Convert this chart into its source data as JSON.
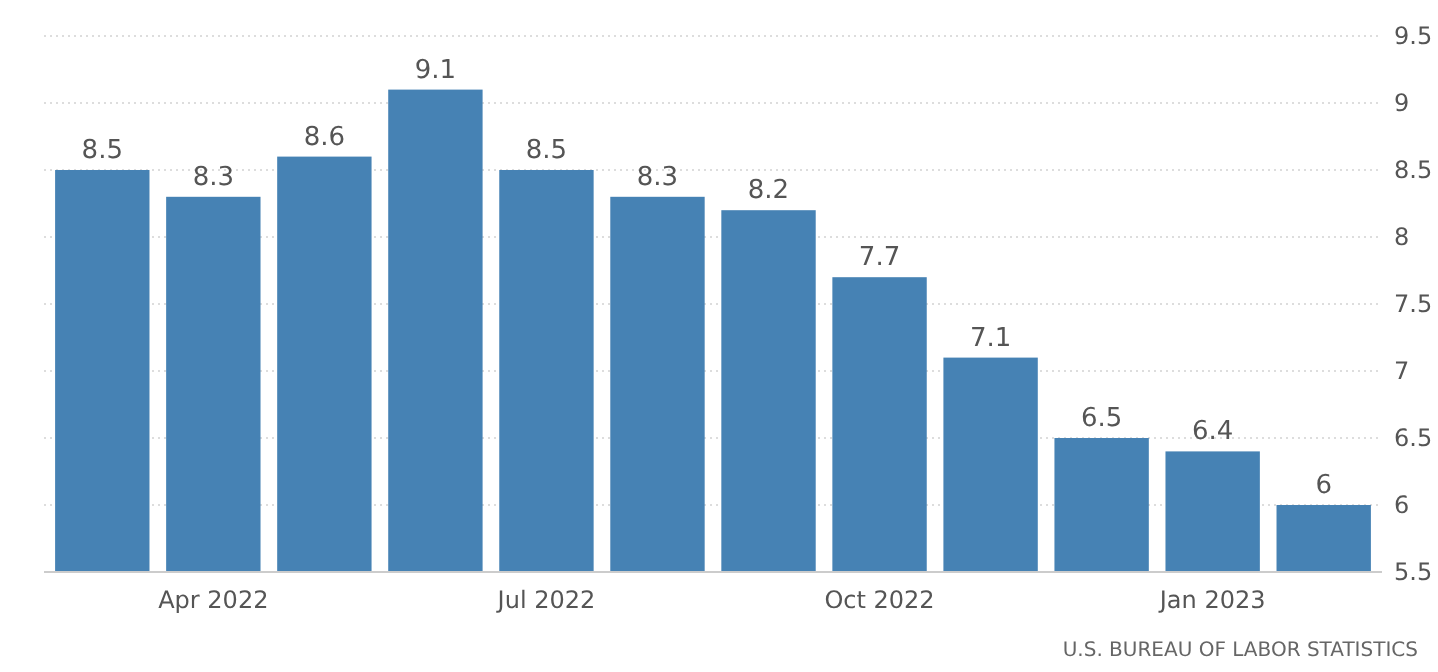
{
  "chart_data": {
    "type": "bar",
    "categories": [
      null,
      "Apr 2022",
      null,
      null,
      "Jul 2022",
      null,
      null,
      "Oct 2022",
      null,
      null,
      "Jan 2023",
      null
    ],
    "values": [
      8.5,
      8.3,
      8.6,
      9.1,
      8.5,
      8.3,
      8.2,
      7.7,
      7.1,
      6.5,
      6.4,
      6
    ],
    "color": "#4682b4",
    "data_labels": true,
    "grid": "y",
    "ylim": [
      5.5,
      9.5
    ],
    "yticks": [
      5.5,
      6,
      6.5,
      7,
      7.5,
      8,
      8.5,
      9,
      9.5
    ],
    "annotations": [
      "U.S. BUREAU OF LABOR STATISTICS"
    ]
  }
}
